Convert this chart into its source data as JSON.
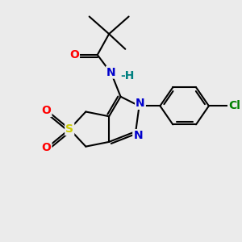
{
  "bg_color": "#ebebeb",
  "bond_lw": 1.5,
  "atom_colors": {
    "O": "#ff0000",
    "N_amide": "#008080",
    "N_ring": "#0000cc",
    "S": "#cccc00",
    "Cl": "#008000",
    "C": "#000000"
  },
  "figsize": [
    3.0,
    3.0
  ],
  "dpi": 100,
  "xlim": [
    0,
    10
  ],
  "ylim": [
    0,
    10
  ]
}
